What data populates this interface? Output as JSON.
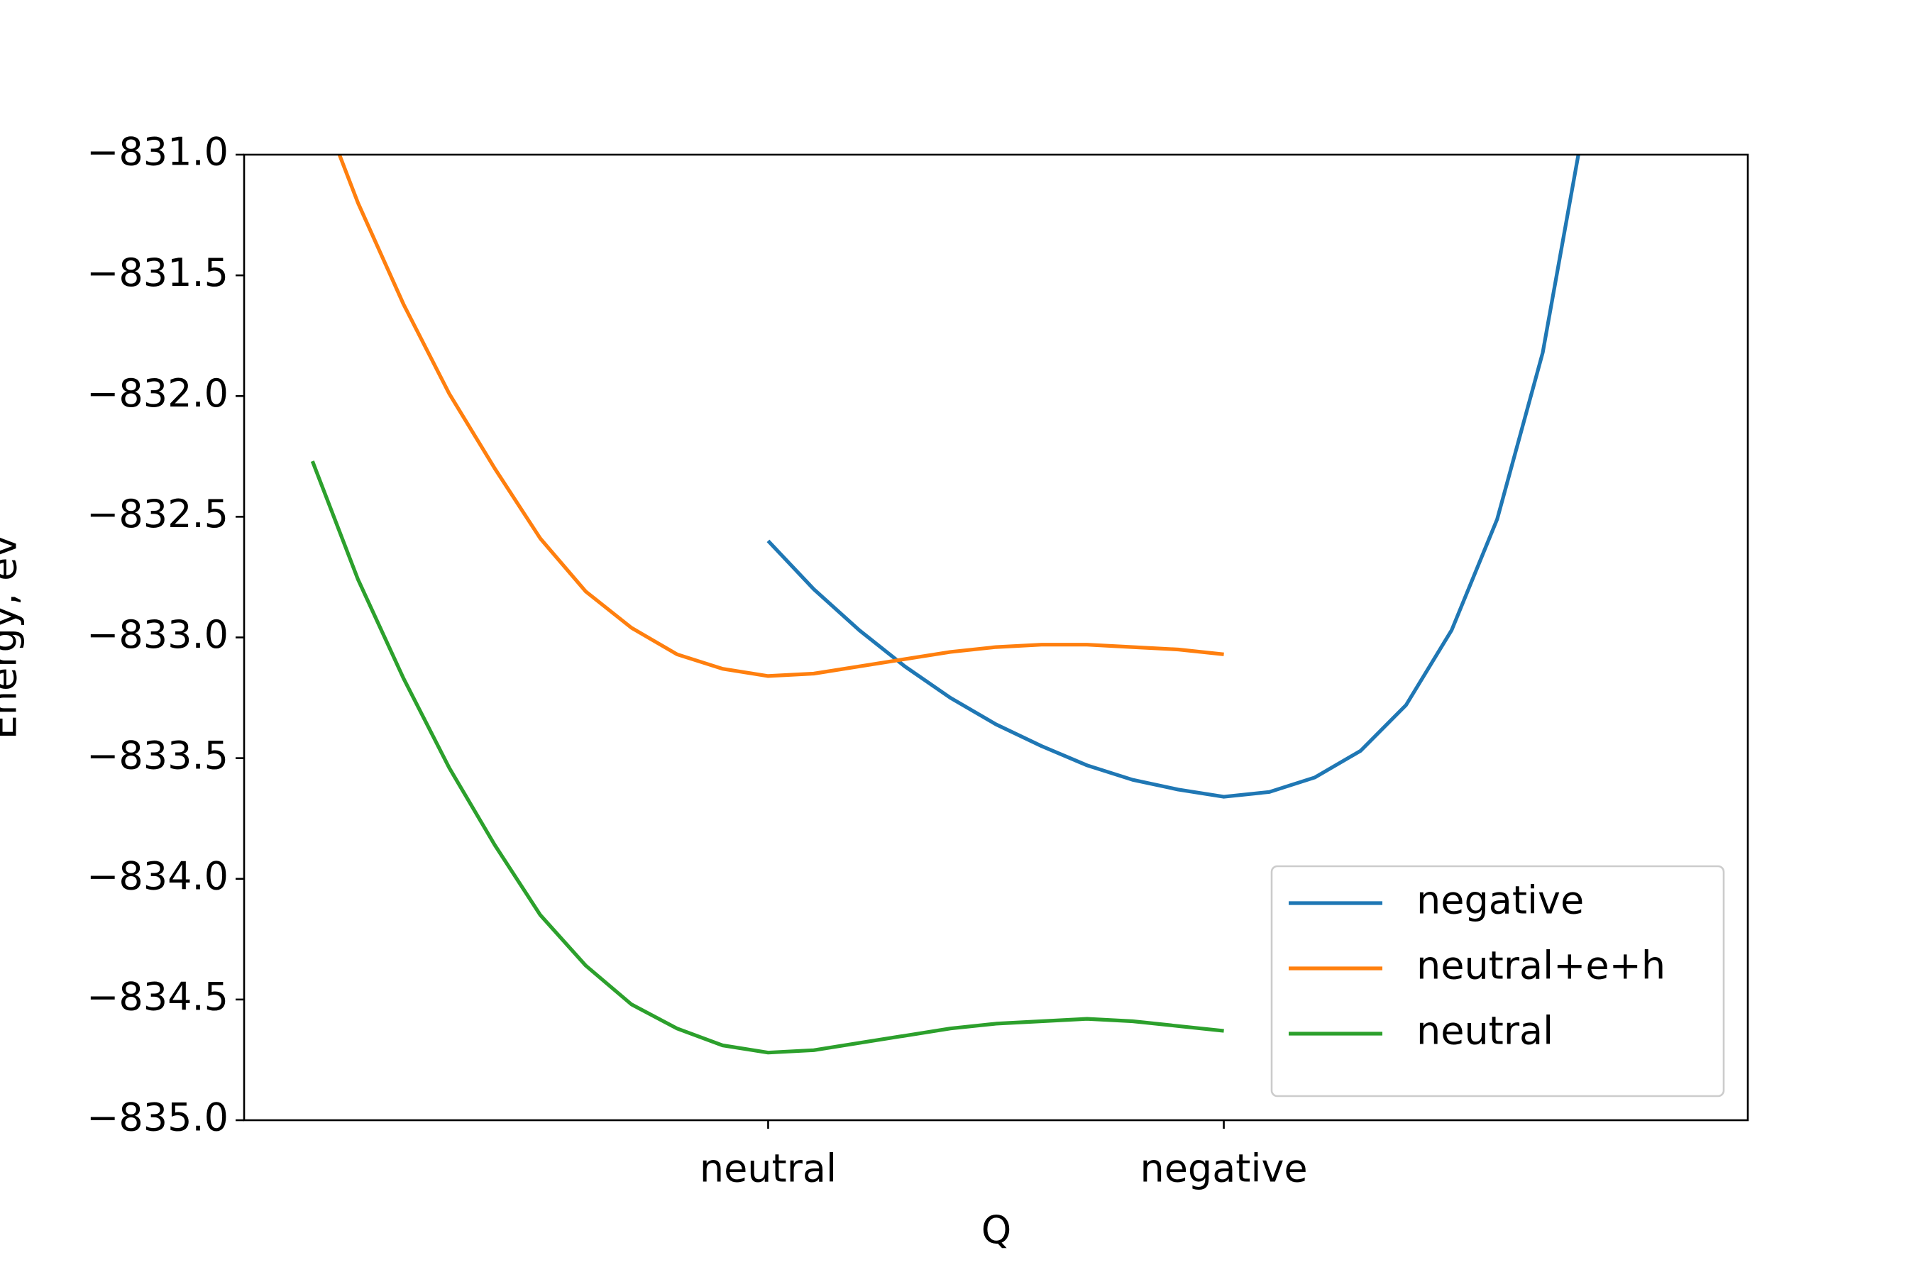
{
  "chart_data": {
    "type": "line",
    "xlabel": "Q",
    "ylabel": "Energy, ev",
    "xlim": [
      -1.15,
      2.15
    ],
    "ylim": [
      -835,
      -831
    ],
    "xticks": [
      {
        "value": 0,
        "label": "neutral"
      },
      {
        "value": 1,
        "label": "negative"
      }
    ],
    "yticks": [
      {
        "value": -835,
        "label": "−835.0"
      },
      {
        "value": -834.5,
        "label": "−834.5"
      },
      {
        "value": -834,
        "label": "−834.0"
      },
      {
        "value": -833.5,
        "label": "−833.5"
      },
      {
        "value": -833,
        "label": "−833.0"
      },
      {
        "value": -832.5,
        "label": "−832.5"
      },
      {
        "value": -832,
        "label": "−832.0"
      },
      {
        "value": -831.5,
        "label": "−831.5"
      },
      {
        "value": -831,
        "label": "−831.0"
      }
    ],
    "grid": false,
    "legend": "lower right",
    "series": [
      {
        "name": "negative",
        "color": "#1f77b4",
        "x": [
          0,
          0.1,
          0.2,
          0.3,
          0.4,
          0.5,
          0.6,
          0.7,
          0.8,
          0.9,
          1.0,
          1.1,
          1.2,
          1.3,
          1.4,
          1.5,
          1.6,
          1.7,
          1.8
        ],
        "values": [
          -832.6,
          -832.8,
          -832.97,
          -833.12,
          -833.25,
          -833.36,
          -833.45,
          -833.53,
          -833.59,
          -833.63,
          -833.66,
          -833.64,
          -833.58,
          -833.47,
          -833.28,
          -832.97,
          -832.51,
          -831.82,
          -830.77
        ]
      },
      {
        "name": "neutral+e+h",
        "color": "#ff7f0e",
        "x": [
          -1.0,
          -0.9,
          -0.8,
          -0.7,
          -0.6,
          -0.5,
          -0.4,
          -0.3,
          -0.2,
          -0.1,
          0,
          0.1,
          0.2,
          0.3,
          0.4,
          0.5,
          0.6,
          0.7,
          0.8,
          0.9,
          1.0
        ],
        "values": [
          -830.71,
          -831.2,
          -831.62,
          -831.99,
          -832.3,
          -832.59,
          -832.81,
          -832.96,
          -833.07,
          -833.13,
          -833.16,
          -833.15,
          -833.12,
          -833.09,
          -833.06,
          -833.04,
          -833.03,
          -833.03,
          -833.04,
          -833.05,
          -833.07
        ]
      },
      {
        "name": "neutral",
        "color": "#2ca02c",
        "x": [
          -1.0,
          -0.9,
          -0.8,
          -0.7,
          -0.6,
          -0.5,
          -0.4,
          -0.3,
          -0.2,
          -0.1,
          0,
          0.1,
          0.2,
          0.3,
          0.4,
          0.5,
          0.6,
          0.7,
          0.8,
          0.9,
          1.0
        ],
        "values": [
          -832.27,
          -832.76,
          -833.17,
          -833.54,
          -833.86,
          -834.15,
          -834.36,
          -834.52,
          -834.62,
          -834.69,
          -834.72,
          -834.71,
          -834.68,
          -834.65,
          -834.62,
          -834.6,
          -834.59,
          -834.58,
          -834.59,
          -834.61,
          -834.63
        ]
      }
    ]
  }
}
